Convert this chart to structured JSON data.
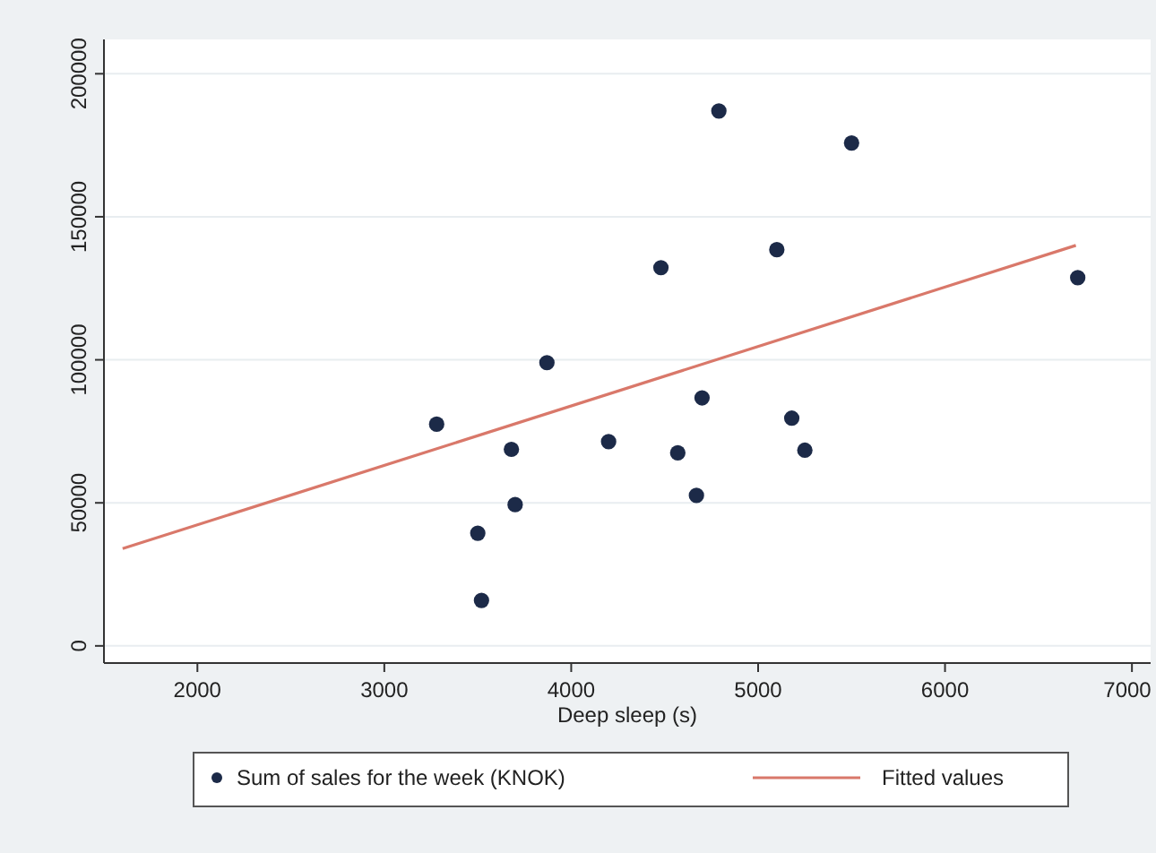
{
  "chart_data": {
    "type": "scatter",
    "xlabel": "Deep sleep (s)",
    "xlim": [
      1500,
      7100
    ],
    "xticks": [
      2000,
      3000,
      4000,
      5000,
      6000,
      7000
    ],
    "ylim": [
      -6000,
      212000
    ],
    "yticks": [
      0,
      50000,
      100000,
      150000,
      200000
    ],
    "grid": "y",
    "legend": "bottom",
    "series": [
      {
        "name": "Sum of sales for the week (KNOK)",
        "marker": "circle",
        "color": "#1c2a48",
        "x": [
          3280,
          3870,
          3680,
          3700,
          3500,
          3520,
          4790,
          5500,
          5100,
          4480,
          6710,
          4700,
          5180,
          4200,
          4570,
          5250,
          4670
        ],
        "values": [
          77500,
          99000,
          68700,
          49400,
          39400,
          15900,
          187000,
          175800,
          138500,
          132200,
          128700,
          86700,
          79600,
          71400,
          67500,
          68400,
          52600
        ]
      },
      {
        "name": "Fitted values",
        "type": "line",
        "color": "#d9786a",
        "line_style": "solid",
        "x": [
          1600,
          6700
        ],
        "values": [
          34000,
          140000
        ]
      }
    ]
  }
}
